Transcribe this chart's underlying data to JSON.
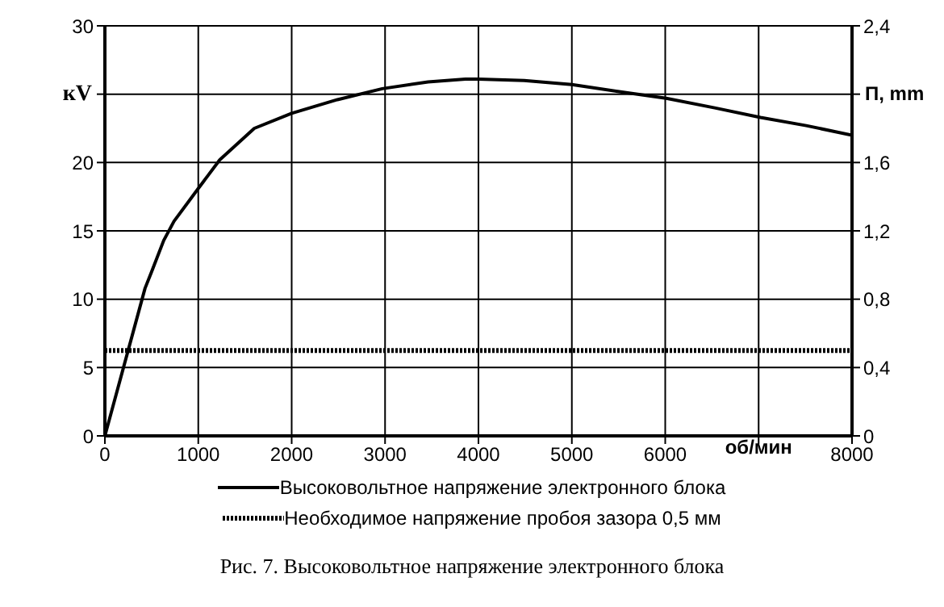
{
  "chart_data": {
    "type": "line",
    "xlabel": "об/мин",
    "ylabel": "кV",
    "y2label": "П, mm",
    "annotations": [
      "Рис. 7. Высоковольтное напряжение электронного блока"
    ],
    "series": [
      {
        "name": "Высоковольтное напряжение электронного блока",
        "color": "#000000",
        "line_style": "solid",
        "x": [
          0,
          430,
          500,
          630,
          740,
          1000,
          1230,
          1600,
          2000,
          2490,
          2970,
          3460,
          3860,
          4000,
          4490,
          5000,
          5490,
          6010,
          6530,
          7020,
          7510,
          8000
        ],
        "values": [
          0,
          10.8,
          12,
          14.3,
          15.7,
          18.1,
          20.2,
          22.5,
          23.6,
          24.6,
          25.4,
          25.9,
          26.1,
          26.1,
          26,
          25.7,
          25.2,
          24.7,
          24,
          23.3,
          22.7,
          22
        ]
      },
      {
        "name": "Необходимое напряжение пробоя зазора 0,5 мм",
        "color": "#000000",
        "line_style": "dotted",
        "axis": "y2",
        "x": [
          0,
          8000
        ],
        "values": [
          0.5,
          0.5
        ]
      }
    ],
    "xlim": [
      0,
      8000
    ],
    "xticks": [
      0,
      1000,
      2000,
      3000,
      4000,
      5000,
      6000,
      {
        "value": 7000,
        "label": null
      },
      8000
    ],
    "ylim": [
      0,
      30
    ],
    "yticks": [
      0,
      5,
      10,
      15,
      20,
      {
        "value": 25,
        "label": null
      },
      30
    ],
    "y2lim": [
      0,
      2.4
    ],
    "y2ticks": [
      0,
      {
        "value": 0.4,
        "label": "0,4"
      },
      {
        "value": 0.8,
        "label": "0,8"
      },
      {
        "value": 1.2,
        "label": "1,2"
      },
      {
        "value": 1.6,
        "label": "1,6"
      },
      {
        "value": 2,
        "label": null
      },
      {
        "value": 2.4,
        "label": "2,4"
      }
    ],
    "grid": true,
    "legend": "bottom",
    "marker": "none"
  }
}
